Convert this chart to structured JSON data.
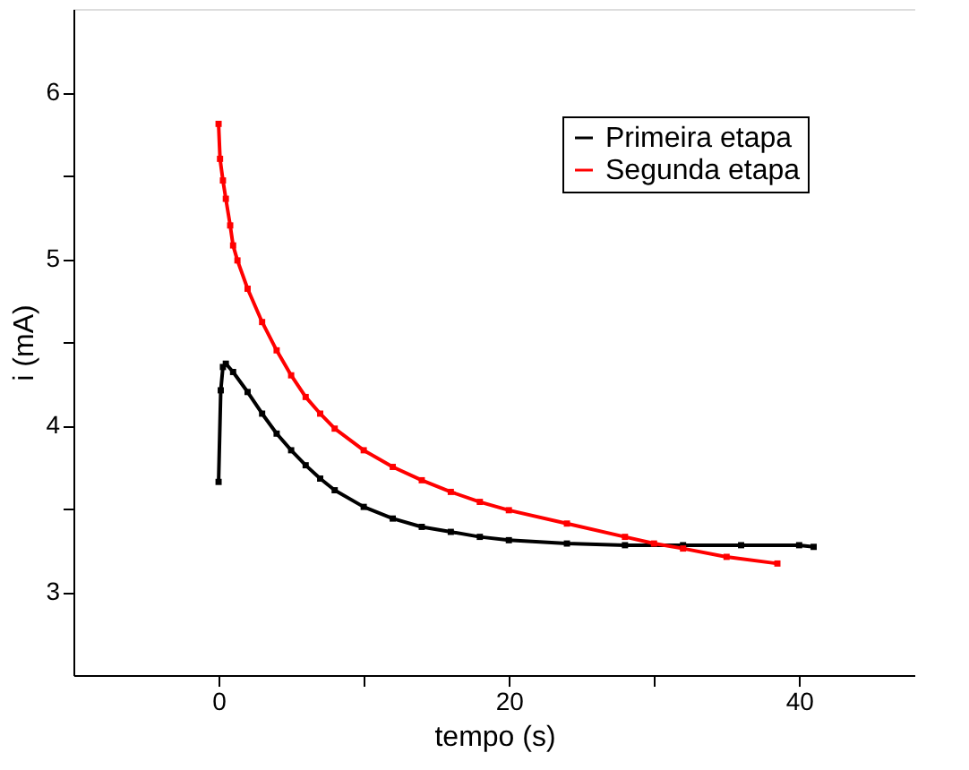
{
  "chart_data": {
    "type": "line",
    "xlabel": "tempo (s)",
    "ylabel": "i (mA)",
    "xlim": [
      -10,
      48
    ],
    "ylim": [
      2.5,
      6.5
    ],
    "xticks": [
      0,
      {
        "value": 10,
        "label": null
      },
      20,
      {
        "value": 30,
        "label": null
      },
      40
    ],
    "yticks": [
      3,
      {
        "value": 3.5,
        "label": null
      },
      4,
      {
        "value": 4.5,
        "label": null
      },
      5,
      {
        "value": 5.5,
        "label": null
      },
      6
    ],
    "grid": false,
    "legend": "top right",
    "marker": "square",
    "line_style": "solid",
    "series": [
      {
        "name": "Primeira etapa",
        "color": "#000000",
        "x": [
          0,
          0.15,
          0.3,
          0.5,
          1,
          2,
          3,
          4,
          5,
          6,
          7,
          8,
          10,
          12,
          14,
          16,
          18,
          20,
          24,
          28,
          32,
          36,
          40,
          41
        ],
        "values": [
          3.66,
          4.21,
          4.35,
          4.37,
          4.32,
          4.2,
          4.07,
          3.95,
          3.85,
          3.76,
          3.68,
          3.61,
          3.51,
          3.44,
          3.39,
          3.36,
          3.33,
          3.31,
          3.29,
          3.28,
          3.28,
          3.28,
          3.28,
          3.27
        ]
      },
      {
        "name": "Segunda etapa",
        "color": "#ff0000",
        "x": [
          0,
          0.1,
          0.3,
          0.5,
          0.8,
          1,
          1.3,
          2,
          3,
          4,
          5,
          6,
          7,
          8,
          10,
          12,
          14,
          16,
          18,
          20,
          24,
          28,
          30,
          32,
          35,
          38.5
        ],
        "values": [
          5.81,
          5.6,
          5.47,
          5.36,
          5.2,
          5.08,
          4.99,
          4.82,
          4.62,
          4.45,
          4.3,
          4.17,
          4.07,
          3.98,
          3.85,
          3.75,
          3.67,
          3.6,
          3.54,
          3.49,
          3.41,
          3.33,
          3.29,
          3.26,
          3.21,
          3.17
        ]
      }
    ]
  }
}
